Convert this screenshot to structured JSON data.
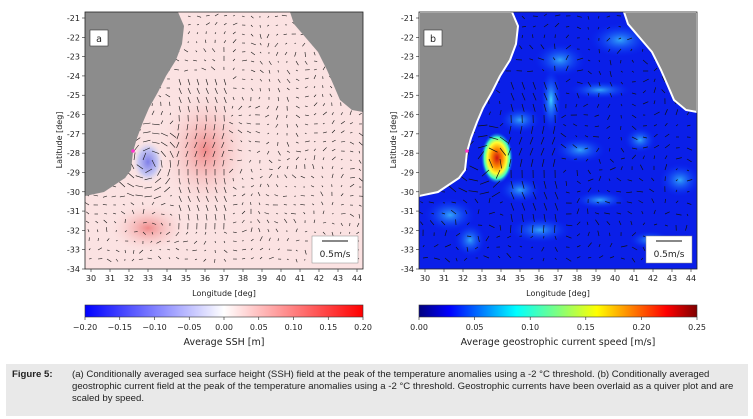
{
  "panels": [
    {
      "id": "a",
      "label": "a",
      "scale_label": "0.5m/s",
      "xlabel": "Longitude [deg]",
      "ylabel": "Latitude [deg]",
      "x_ticks": [
        "30",
        "31",
        "32",
        "33",
        "34",
        "35",
        "36",
        "37",
        "38",
        "39",
        "40",
        "41",
        "42",
        "43",
        "44"
      ],
      "y_ticks": [
        "-21",
        "-22",
        "-23",
        "-24",
        "-25",
        "-26",
        "-27",
        "-28",
        "-29",
        "-30",
        "-31",
        "-32",
        "-33",
        "-34"
      ],
      "colorbar": {
        "label": "Average SSH [m]",
        "ticks": [
          "−0.20",
          "−0.15",
          "−0.10",
          "−0.05",
          "0.00",
          "0.05",
          "0.10",
          "0.15",
          "0.20"
        ],
        "colors": [
          "#0000ff",
          "#5a5aff",
          "#a5a5ff",
          "#ffffff",
          "#ffa5a5",
          "#ff5a5a",
          "#ff0000"
        ]
      }
    },
    {
      "id": "b",
      "label": "b",
      "scale_label": "0.5m/s",
      "xlabel": "Longitude [deg]",
      "ylabel": "Latitude [deg]",
      "x_ticks": [
        "30",
        "31",
        "32",
        "33",
        "34",
        "35",
        "36",
        "37",
        "38",
        "39",
        "40",
        "41",
        "42",
        "43",
        "44"
      ],
      "y_ticks": [
        "-21",
        "-22",
        "-23",
        "-24",
        "-25",
        "-26",
        "-27",
        "-28",
        "-29",
        "-30",
        "-31",
        "-32",
        "-33",
        "-34"
      ],
      "colorbar": {
        "label": "Average geostrophic current speed [m/s]",
        "ticks": [
          "0.00",
          "0.05",
          "0.10",
          "0.15",
          "0.20",
          "0.25"
        ],
        "colors": [
          "#00007f",
          "#0000ff",
          "#0080ff",
          "#00ffff",
          "#7fff7f",
          "#ffff00",
          "#ff8000",
          "#ff0000",
          "#7f0000"
        ]
      }
    }
  ],
  "caption": {
    "label": "Figure 5:",
    "text": "(a) Conditionally averaged sea surface height (SSH) field at the peak of the temperature anomalies using a -2 °C threshold. (b) Conditionally averaged geostrophic current field at the peak of the temperature anomalies using a -2 °C threshold. Geostrophic currents have been overlaid as a quiver plot and are scaled by speed."
  },
  "colors": {
    "land": "#8c8c8c",
    "marker": "#ff33cc",
    "caption_bg": "#e9e9e9"
  }
}
